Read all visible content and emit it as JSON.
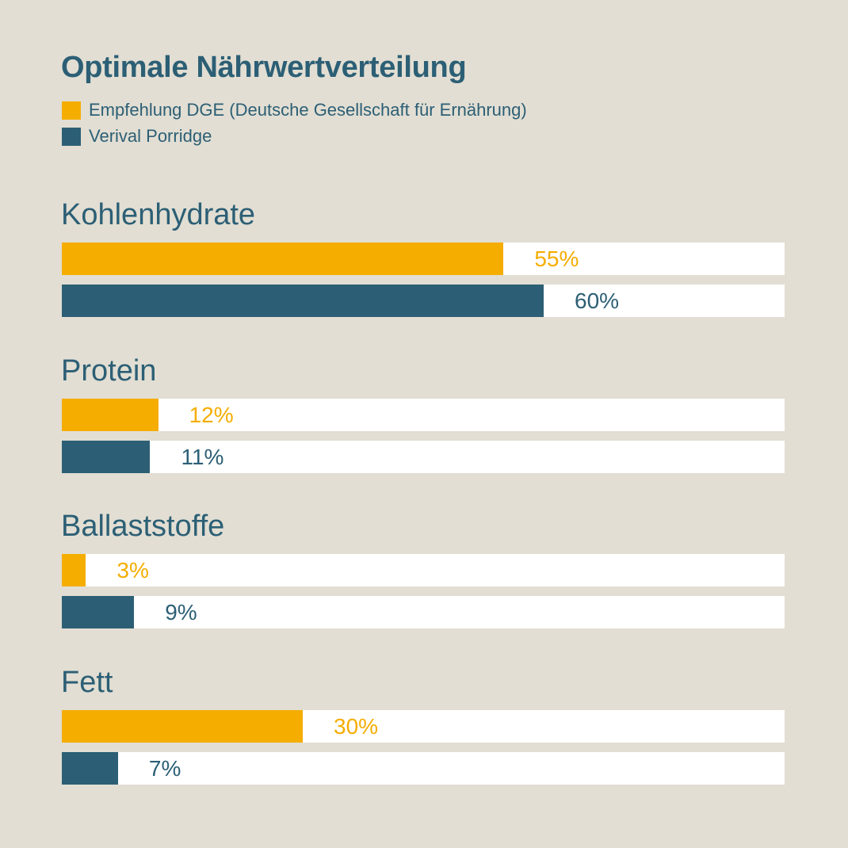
{
  "colors": {
    "background": "#e2ded3",
    "dge": "#f5ad00",
    "verival": "#2c5f75"
  },
  "chart_data": {
    "type": "bar",
    "orientation": "horizontal",
    "title": "Optimale Nährwertverteilung",
    "legend": [
      "Empfehlung DGE (Deutsche Gesellschaft für Ernährung)",
      "Verival Porridge"
    ],
    "legend_placement": "top-left",
    "categories": [
      "Kohlenhydrate",
      "Protein",
      "Ballaststoffe",
      "Fett"
    ],
    "series": [
      {
        "name": "Empfehlung DGE (Deutsche Gesellschaft für Ernährung)",
        "values": [
          55,
          12,
          3,
          30
        ],
        "labels": [
          "55%",
          "12%",
          "3%",
          "30%"
        ]
      },
      {
        "name": "Verival Porridge",
        "values": [
          60,
          11,
          9,
          7
        ],
        "labels": [
          "60%",
          "11%",
          "9%",
          "7%"
        ]
      }
    ],
    "xlim": [
      0,
      90
    ],
    "xlabel": "",
    "ylabel": "",
    "grid": false
  }
}
